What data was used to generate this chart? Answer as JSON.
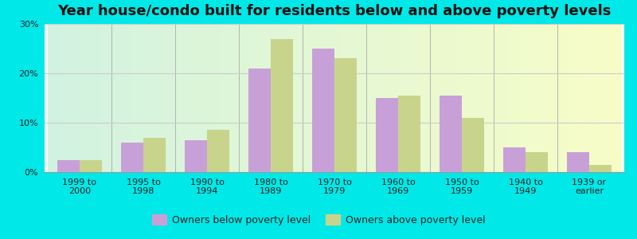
{
  "title": "Year house/condo built for residents below and above poverty levels",
  "categories": [
    "1999 to\n2000",
    "1995 to\n1998",
    "1990 to\n1994",
    "1980 to\n1989",
    "1970 to\n1979",
    "1960 to\n1969",
    "1950 to\n1959",
    "1940 to\n1949",
    "1939 or\nearlier"
  ],
  "below_poverty": [
    2.5,
    6.0,
    6.5,
    21.0,
    25.0,
    15.0,
    15.5,
    5.0,
    4.0
  ],
  "above_poverty": [
    2.5,
    7.0,
    8.5,
    27.0,
    23.0,
    15.5,
    11.0,
    4.0,
    1.5
  ],
  "below_color": "#c8a0d8",
  "above_color": "#c8d48c",
  "outer_bg": "#00e8e8",
  "ylim": [
    0,
    30
  ],
  "yticks": [
    0,
    10,
    20,
    30
  ],
  "ytick_labels": [
    "0%",
    "10%",
    "20%",
    "30%"
  ],
  "legend_below": "Owners below poverty level",
  "legend_above": "Owners above poverty level",
  "bar_width": 0.35,
  "title_fontsize": 13,
  "tick_fontsize": 8,
  "legend_fontsize": 9
}
